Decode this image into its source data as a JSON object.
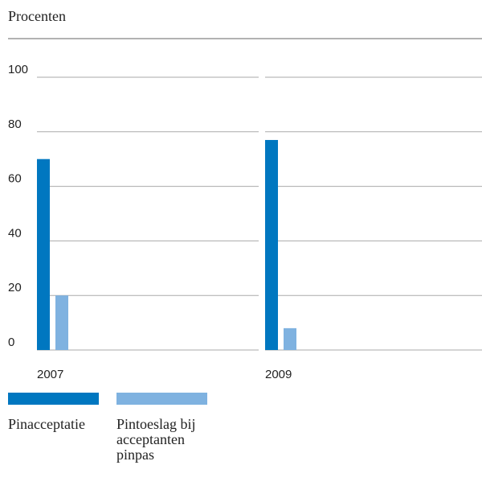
{
  "chart_data": {
    "type": "bar",
    "ylabel": "Procenten",
    "categories": [
      "2007",
      "2009"
    ],
    "series": [
      {
        "name": "Pinacceptatie",
        "color": "#0077c0",
        "values": [
          70,
          77
        ]
      },
      {
        "name": "Pintoeslag bij acceptanten pinpas",
        "color": "#7fb2e0",
        "values": [
          20,
          8
        ]
      }
    ],
    "ylim": [
      0,
      100
    ],
    "yticks": [
      0,
      20,
      40,
      60,
      80,
      100
    ],
    "grid": true
  }
}
